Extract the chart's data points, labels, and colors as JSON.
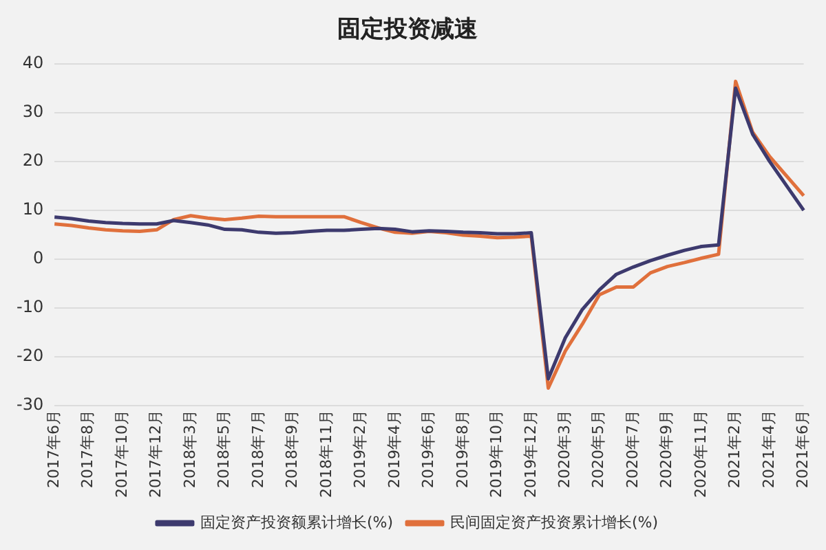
{
  "chart_data": {
    "type": "line",
    "title": "固定投资减速",
    "categories": [
      "2017年6月",
      null,
      "2017年8月",
      null,
      "2017年10月",
      null,
      "2017年12月",
      null,
      "2018年3月",
      null,
      "2018年5月",
      null,
      "2018年7月",
      null,
      "2018年9月",
      null,
      "2018年11月",
      null,
      "2019年2月",
      null,
      "2019年4月",
      null,
      "2019年6月",
      null,
      "2019年8月",
      null,
      "2019年10月",
      null,
      "2019年12月",
      null,
      "2020年3月",
      null,
      "2020年5月",
      null,
      "2020年7月",
      null,
      "2020年9月",
      null,
      "2020年11月",
      null,
      "2021年2月",
      null,
      "2021年4月",
      null,
      "2021年6月"
    ],
    "series": [
      {
        "name": "固定资产投资额累计增长(%)",
        "color": "#3d3a6e",
        "values": [
          8.6,
          8.3,
          7.8,
          7.5,
          7.3,
          7.2,
          7.2,
          7.9,
          7.5,
          7.0,
          6.1,
          6.0,
          5.5,
          5.3,
          5.4,
          5.7,
          5.9,
          5.9,
          6.1,
          6.3,
          6.1,
          5.6,
          5.8,
          5.7,
          5.5,
          5.4,
          5.2,
          5.2,
          5.4,
          -24.5,
          -16.1,
          -10.3,
          -6.3,
          -3.1,
          -1.6,
          -0.3,
          0.8,
          1.8,
          2.6,
          2.9,
          35.0,
          25.6,
          20,
          15,
          10
        ]
      },
      {
        "name": "民间固定资产投资累计增长(%)",
        "color": "#e0703c",
        "values": [
          7.2,
          6.9,
          6.4,
          6.0,
          5.8,
          5.7,
          6.0,
          8.1,
          8.9,
          8.4,
          8.1,
          8.4,
          8.8,
          8.7,
          8.7,
          8.7,
          8.7,
          8.7,
          7.5,
          6.4,
          5.5,
          5.3,
          5.7,
          5.4,
          4.9,
          4.7,
          4.4,
          4.5,
          4.7,
          -26.4,
          -18.8,
          -13.3,
          -7.3,
          -5.7,
          -5.7,
          -2.8,
          -1.5,
          -0.7,
          0.2,
          1.0,
          36.4,
          26.0,
          21,
          17,
          13
        ]
      }
    ],
    "ylim": [
      -30,
      40
    ],
    "yticks": [
      -30,
      -20,
      -10,
      0,
      10,
      20,
      30,
      40
    ],
    "grid": "y",
    "legend": "bottom",
    "marker": "none",
    "line_style": "solid"
  }
}
